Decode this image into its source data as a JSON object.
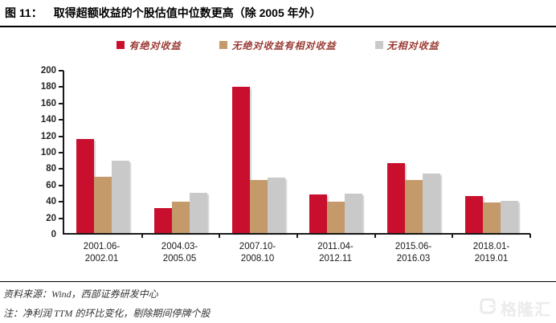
{
  "header": {
    "figure_label": "图 11：",
    "title": "取得超额收益的个股估值中位数更高（除 2005 年外）"
  },
  "legend": {
    "items": [
      {
        "label": "有绝对收益",
        "color": "#C8102E"
      },
      {
        "label": "无绝对收益有相对收益",
        "color": "#C49A6B"
      },
      {
        "label": "无相对收益",
        "color": "#C9C9C9"
      }
    ]
  },
  "chart_data": {
    "type": "bar",
    "title": "取得超额收益的个股估值中位数更高（除 2005 年外）",
    "categories": [
      "2001.06-2002.01",
      "2004.03-2005.05",
      "2007.10-2008.10",
      "2011.04-2012.11",
      "2015.06-2016.03",
      "2018.01-2019.01"
    ],
    "series": [
      {
        "name": "有绝对收益",
        "color": "#C8102E",
        "values": [
          115,
          30,
          178,
          47,
          85,
          45
        ]
      },
      {
        "name": "无绝对收益有相对收益",
        "color": "#C49A6B",
        "values": [
          69,
          38,
          65,
          38,
          65,
          37
        ]
      },
      {
        "name": "无相对收益",
        "color": "#C9C9C9",
        "values": [
          88,
          49,
          68,
          48,
          73,
          39
        ]
      }
    ],
    "xlabel": "",
    "ylabel": "",
    "ylim": [
      0,
      200
    ],
    "y_tick_step": 20,
    "y_ticks": [
      0,
      20,
      40,
      60,
      80,
      100,
      120,
      140,
      160,
      180,
      200
    ],
    "grid": false,
    "legend_position": "top"
  },
  "footer": {
    "source": "资料来源：Wind，西部证券研发中心",
    "note": "注：净利润 TTM 的环比变化，剔除期间停牌个股"
  },
  "watermark": {
    "brand": "格隆汇"
  }
}
